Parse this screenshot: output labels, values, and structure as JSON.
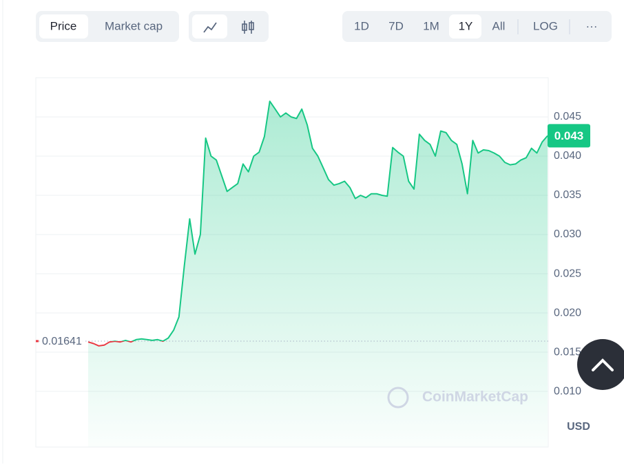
{
  "toolbar": {
    "metric": [
      "Price",
      "Market cap"
    ],
    "ranges": [
      "1D",
      "7D",
      "1M",
      "1Y",
      "All"
    ],
    "scale": "LOG",
    "more": "···"
  },
  "chart_data": {
    "type": "line",
    "values": [
      0.0163,
      0.0161,
      0.0158,
      0.0159,
      0.0163,
      0.0164,
      0.0163,
      0.0165,
      0.0163,
      0.0166,
      0.0167,
      0.0166,
      0.0165,
      0.0166,
      0.0164,
      0.0168,
      0.0178,
      0.0195,
      0.026,
      0.032,
      0.0275,
      0.03,
      0.0423,
      0.04,
      0.0395,
      0.0375,
      0.0355,
      0.036,
      0.0365,
      0.039,
      0.038,
      0.04,
      0.0405,
      0.0425,
      0.047,
      0.046,
      0.045,
      0.0455,
      0.045,
      0.0448,
      0.046,
      0.044,
      0.041,
      0.04,
      0.0385,
      0.037,
      0.0363,
      0.0365,
      0.0368,
      0.036,
      0.0346,
      0.035,
      0.0347,
      0.0352,
      0.0352,
      0.035,
      0.0349,
      0.0411,
      0.0405,
      0.04,
      0.0368,
      0.0358,
      0.0428,
      0.042,
      0.0415,
      0.04,
      0.0432,
      0.043,
      0.042,
      0.0415,
      0.039,
      0.0352,
      0.042,
      0.0404,
      0.0408,
      0.0407,
      0.0404,
      0.04,
      0.0392,
      0.0389,
      0.039,
      0.0395,
      0.0398,
      0.041,
      0.0404,
      0.0418,
      0.0426
    ],
    "up_color": "#16c784",
    "down_color": "#ea3943",
    "ylim": [
      0.0029,
      0.05
    ],
    "yticks": [
      {
        "value": 0.01,
        "label": "0.010"
      },
      0.015,
      {
        "value": 0.02,
        "label": "0.020"
      },
      0.025,
      {
        "value": 0.03,
        "label": "0.030"
      },
      0.035,
      {
        "value": 0.04,
        "label": "0.040"
      },
      0.045
    ],
    "grid": true,
    "baseline": {
      "value": 0.01641,
      "label": "0.01641"
    },
    "current": {
      "value": 0.0426,
      "label": "0.043"
    },
    "currency": "USD",
    "watermark": "CoinMarketCap"
  }
}
